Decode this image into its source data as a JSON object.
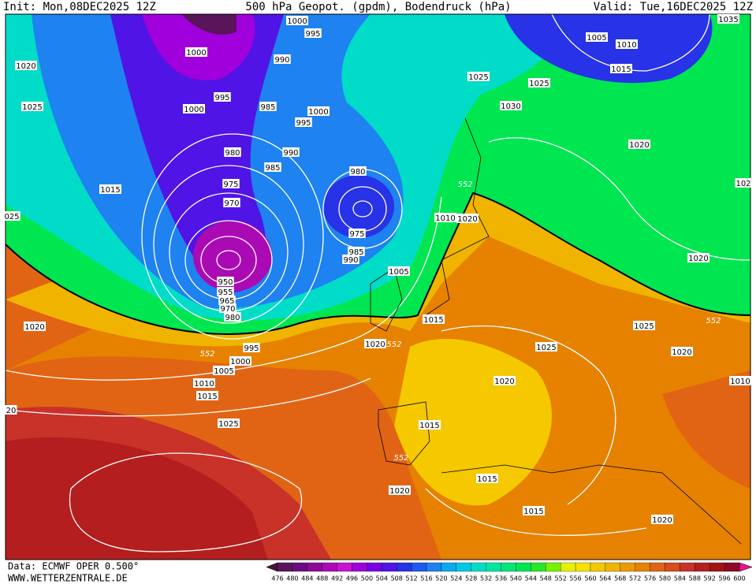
{
  "header": {
    "init": "Init: Mon,08DEC2025 12Z",
    "title": "500 hPa Geopot. (gpdm), Bodendruck (hPa)",
    "valid": "Valid: Tue,16DEC2025 12Z"
  },
  "isobar_labels": [
    1000,
    995,
    1035,
    1005,
    1010,
    1000,
    990,
    1020,
    1015,
    1025,
    1025,
    995,
    985,
    1000,
    1000,
    1025,
    1030,
    995,
    1020,
    980,
    990,
    985,
    980,
    975,
    552,
    "102",
    1015,
    970,
    "025",
    1010,
    1020,
    975,
    985,
    990,
    1020,
    1005,
    950,
    955,
    965,
    970,
    980,
    1020,
    1015,
    552,
    1025,
    1020,
    552,
    1025,
    995,
    552,
    1020,
    1000,
    1005,
    1010,
    1020,
    1010,
    1015,
    "20",
    1015,
    1025,
    552,
    1015,
    1020,
    1015,
    1020
  ],
  "footer": {
    "source": "Data: ECMWF OPER 0.500°",
    "site": "WWW.WETTERZENTRALE.DE"
  },
  "colorbar": {
    "ticks": [
      476,
      480,
      484,
      488,
      492,
      496,
      500,
      504,
      508,
      512,
      516,
      520,
      524,
      528,
      532,
      536,
      540,
      544,
      548,
      552,
      556,
      560,
      564,
      568,
      572,
      576,
      580,
      584,
      588,
      592,
      596,
      600
    ],
    "colors": [
      "#46143c",
      "#5a145a",
      "#6e0a82",
      "#8c0a96",
      "#aa0ab4",
      "#c814d2",
      "#a000dc",
      "#7800e6",
      "#5014e6",
      "#2832e6",
      "#1e5af0",
      "#1e82f0",
      "#0aaaf0",
      "#00c8e6",
      "#00dcc8",
      "#00e6a0",
      "#00e678",
      "#00e650",
      "#28e628",
      "#78f000",
      "#e6f000",
      "#f5e100",
      "#f5c800",
      "#f0b400",
      "#eb9b00",
      "#e68200",
      "#e16414",
      "#d74b1e",
      "#c83228",
      "#b41e1e",
      "#a01414",
      "#8c0a28",
      "#e6148c"
    ]
  }
}
